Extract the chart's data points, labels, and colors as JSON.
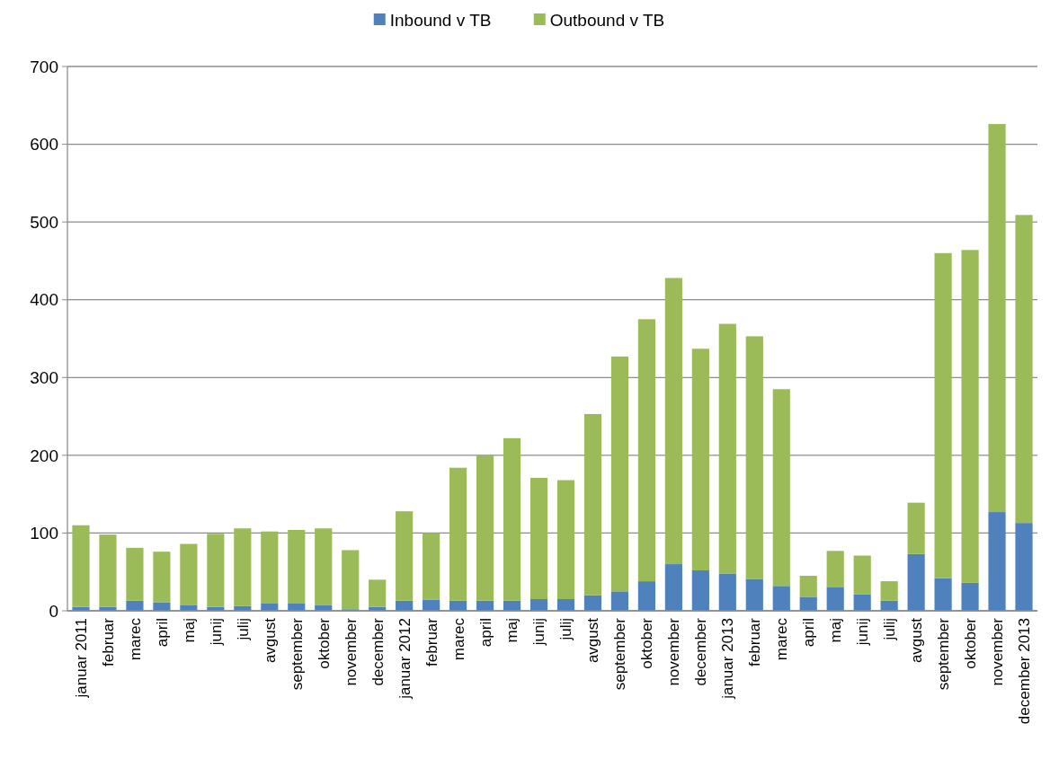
{
  "chart_data": {
    "type": "bar",
    "stacked": true,
    "legend": "top",
    "grid": "y",
    "categories": [
      "januar 2011",
      "februar",
      "marec",
      "april",
      "maj",
      "junij",
      "julij",
      "avgust",
      "september",
      "oktober",
      "november",
      "december",
      "januar 2012",
      "februar",
      "marec",
      "april",
      "maj",
      "junij",
      "julij",
      "avgust",
      "september",
      "oktober",
      "november",
      "december",
      "januar 2013",
      "februar",
      "marec",
      "april",
      "maj",
      "junij",
      "julij",
      "avgust",
      "september",
      "oktober",
      "november",
      "december 2013"
    ],
    "series": [
      {
        "name": "Inbound v TB",
        "color": "#4f81bd",
        "values": [
          5,
          5,
          13,
          11,
          7,
          5,
          6,
          10,
          10,
          7,
          2,
          5,
          13,
          14,
          13,
          13,
          13,
          15,
          15,
          20,
          25,
          38,
          60,
          52,
          48,
          41,
          32,
          18,
          30,
          21,
          13,
          73,
          42,
          36,
          127,
          113
        ]
      },
      {
        "name": "Outbound v TB",
        "color": "#9bbb59",
        "values": [
          105,
          93,
          68,
          65,
          79,
          94,
          100,
          92,
          94,
          99,
          76,
          35,
          115,
          86,
          171,
          187,
          209,
          156,
          153,
          233,
          302,
          337,
          368,
          285,
          321,
          312,
          253,
          27,
          47,
          50,
          25,
          66,
          418,
          428,
          499,
          396
        ]
      }
    ],
    "ylim": [
      0,
      700
    ],
    "yticks": [
      0,
      100,
      200,
      300,
      400,
      500,
      600,
      700
    ]
  }
}
